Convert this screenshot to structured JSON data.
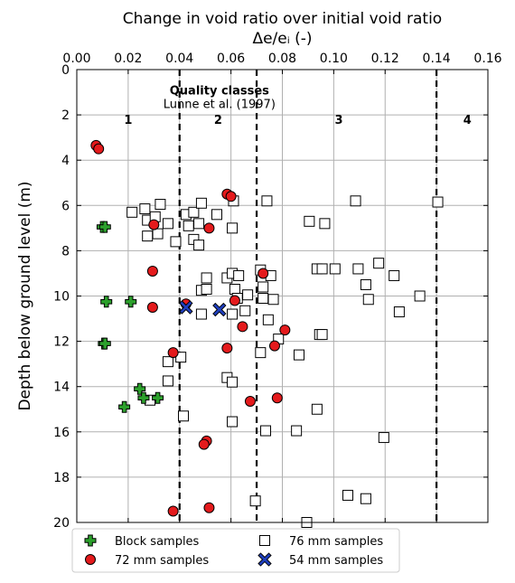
{
  "chart_data": {
    "type": "scatter",
    "title": "Change in void ratio over initial void ratio",
    "xlabel": "Δe/eᵢ (-)",
    "ylabel": "Depth below ground level (m)",
    "xlim": [
      0,
      0.16
    ],
    "ylim": [
      20,
      0
    ],
    "x_ticks": [
      "0.00",
      "0.02",
      "0.04",
      "0.06",
      "0.08",
      "0.10",
      "0.12",
      "0.14",
      "0.16"
    ],
    "y_ticks": [
      "0",
      "2",
      "4",
      "6",
      "8",
      "10",
      "12",
      "14",
      "16",
      "18",
      "20"
    ],
    "grid": true,
    "x_axis_position": "top",
    "class_boundaries": [
      0.04,
      0.07,
      0.14
    ],
    "annotation": {
      "title": "Quality classes",
      "subtitle": "Lunne et al. (1997)"
    },
    "class_labels": [
      {
        "label": "1",
        "x": 0.02,
        "y": 2.2
      },
      {
        "label": "2",
        "x": 0.055,
        "y": 2.2
      },
      {
        "label": "3",
        "x": 0.102,
        "y": 2.2
      },
      {
        "label": "4",
        "x": 0.152,
        "y": 2.2
      }
    ],
    "legend_position": "bottom",
    "series": [
      {
        "name": "Block samples",
        "marker": "plus",
        "color": "#2ca02c",
        "points": [
          {
            "x": 0.01,
            "y": 6.95
          },
          {
            "x": 0.011,
            "y": 6.95
          },
          {
            "x": 0.0115,
            "y": 10.25
          },
          {
            "x": 0.021,
            "y": 10.25
          },
          {
            "x": 0.0105,
            "y": 12.1
          },
          {
            "x": 0.011,
            "y": 12.1
          },
          {
            "x": 0.0245,
            "y": 14.1
          },
          {
            "x": 0.026,
            "y": 14.5
          },
          {
            "x": 0.0315,
            "y": 14.5
          },
          {
            "x": 0.0185,
            "y": 14.9
          }
        ]
      },
      {
        "name": "72 mm samples",
        "marker": "circle",
        "color": "#e41a1c",
        "points": [
          {
            "x": 0.0075,
            "y": 3.35
          },
          {
            "x": 0.0085,
            "y": 3.5
          },
          {
            "x": 0.03,
            "y": 6.85
          },
          {
            "x": 0.0295,
            "y": 8.9
          },
          {
            "x": 0.0295,
            "y": 10.5
          },
          {
            "x": 0.0375,
            "y": 12.5
          },
          {
            "x": 0.0375,
            "y": 19.5
          },
          {
            "x": 0.0425,
            "y": 10.35
          },
          {
            "x": 0.0515,
            "y": 7.0
          },
          {
            "x": 0.0585,
            "y": 5.5
          },
          {
            "x": 0.06,
            "y": 5.6
          },
          {
            "x": 0.0585,
            "y": 12.3
          },
          {
            "x": 0.0615,
            "y": 10.2
          },
          {
            "x": 0.0645,
            "y": 11.35
          },
          {
            "x": 0.0725,
            "y": 9.0
          },
          {
            "x": 0.0675,
            "y": 14.65
          },
          {
            "x": 0.077,
            "y": 12.2
          },
          {
            "x": 0.081,
            "y": 11.5
          },
          {
            "x": 0.078,
            "y": 14.5
          },
          {
            "x": 0.0505,
            "y": 16.4
          },
          {
            "x": 0.0495,
            "y": 16.55
          },
          {
            "x": 0.0515,
            "y": 19.35
          }
        ]
      },
      {
        "name": "76 mm samples",
        "marker": "square",
        "color": "#000000",
        "points": [
          {
            "x": 0.0215,
            "y": 6.3
          },
          {
            "x": 0.0265,
            "y": 6.15
          },
          {
            "x": 0.0325,
            "y": 5.95
          },
          {
            "x": 0.0275,
            "y": 6.65
          },
          {
            "x": 0.0305,
            "y": 6.5
          },
          {
            "x": 0.0355,
            "y": 6.8
          },
          {
            "x": 0.0275,
            "y": 7.35
          },
          {
            "x": 0.0315,
            "y": 7.25
          },
          {
            "x": 0.0385,
            "y": 7.6
          },
          {
            "x": 0.0425,
            "y": 6.4
          },
          {
            "x": 0.0455,
            "y": 6.3
          },
          {
            "x": 0.0485,
            "y": 5.9
          },
          {
            "x": 0.0435,
            "y": 6.9
          },
          {
            "x": 0.0475,
            "y": 6.8
          },
          {
            "x": 0.0455,
            "y": 7.5
          },
          {
            "x": 0.0475,
            "y": 7.75
          },
          {
            "x": 0.0545,
            "y": 6.4
          },
          {
            "x": 0.061,
            "y": 5.8
          },
          {
            "x": 0.074,
            "y": 5.8
          },
          {
            "x": 0.0605,
            "y": 7.0
          },
          {
            "x": 0.0505,
            "y": 9.2
          },
          {
            "x": 0.0485,
            "y": 9.75
          },
          {
            "x": 0.0505,
            "y": 9.7
          },
          {
            "x": 0.0585,
            "y": 9.2
          },
          {
            "x": 0.0605,
            "y": 9.0
          },
          {
            "x": 0.063,
            "y": 9.1
          },
          {
            "x": 0.0615,
            "y": 9.7
          },
          {
            "x": 0.0625,
            "y": 10.1
          },
          {
            "x": 0.0665,
            "y": 9.95
          },
          {
            "x": 0.0715,
            "y": 8.85
          },
          {
            "x": 0.0725,
            "y": 9.6
          },
          {
            "x": 0.0755,
            "y": 9.1
          },
          {
            "x": 0.0725,
            "y": 10.1
          },
          {
            "x": 0.0765,
            "y": 10.15
          },
          {
            "x": 0.0745,
            "y": 11.05
          },
          {
            "x": 0.0605,
            "y": 10.8
          },
          {
            "x": 0.0655,
            "y": 10.65
          },
          {
            "x": 0.0485,
            "y": 10.8
          },
          {
            "x": 0.0355,
            "y": 12.9
          },
          {
            "x": 0.0405,
            "y": 12.7
          },
          {
            "x": 0.0355,
            "y": 13.75
          },
          {
            "x": 0.0585,
            "y": 13.6
          },
          {
            "x": 0.0605,
            "y": 13.8
          },
          {
            "x": 0.0715,
            "y": 12.5
          },
          {
            "x": 0.0785,
            "y": 11.9
          },
          {
            "x": 0.0865,
            "y": 12.6
          },
          {
            "x": 0.0285,
            "y": 14.6
          },
          {
            "x": 0.0415,
            "y": 15.3
          },
          {
            "x": 0.0605,
            "y": 15.55
          },
          {
            "x": 0.0735,
            "y": 15.95
          },
          {
            "x": 0.0855,
            "y": 15.95
          },
          {
            "x": 0.0935,
            "y": 15.0
          },
          {
            "x": 0.0695,
            "y": 19.05
          },
          {
            "x": 0.0905,
            "y": 6.7
          },
          {
            "x": 0.0965,
            "y": 6.8
          },
          {
            "x": 0.1085,
            "y": 5.8
          },
          {
            "x": 0.1405,
            "y": 5.85
          },
          {
            "x": 0.0935,
            "y": 8.8
          },
          {
            "x": 0.0955,
            "y": 8.8
          },
          {
            "x": 0.1005,
            "y": 8.8
          },
          {
            "x": 0.1095,
            "y": 8.8
          },
          {
            "x": 0.1175,
            "y": 8.55
          },
          {
            "x": 0.1125,
            "y": 9.5
          },
          {
            "x": 0.1235,
            "y": 9.1
          },
          {
            "x": 0.1135,
            "y": 10.15
          },
          {
            "x": 0.1335,
            "y": 10.0
          },
          {
            "x": 0.1255,
            "y": 10.7
          },
          {
            "x": 0.0945,
            "y": 11.7
          },
          {
            "x": 0.0955,
            "y": 11.7
          },
          {
            "x": 0.1195,
            "y": 16.25
          },
          {
            "x": 0.1055,
            "y": 18.8
          },
          {
            "x": 0.1125,
            "y": 18.95
          },
          {
            "x": 0.0895,
            "y": 20.0
          }
        ]
      },
      {
        "name": "54 mm samples",
        "marker": "x",
        "color": "#1f3fbf",
        "points": [
          {
            "x": 0.0425,
            "y": 10.5
          },
          {
            "x": 0.0555,
            "y": 10.6
          }
        ]
      }
    ]
  }
}
